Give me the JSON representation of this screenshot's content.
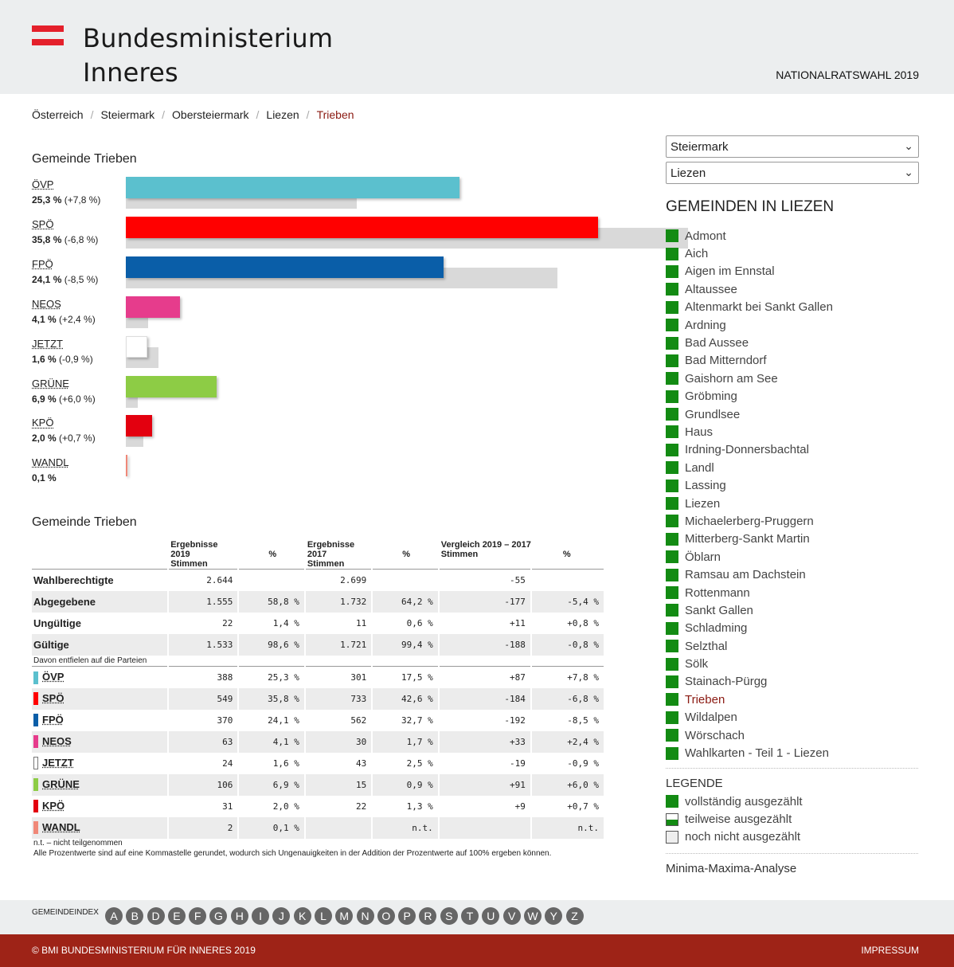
{
  "header": {
    "logo_line1": "Bundesministerium",
    "logo_line2": "Inneres",
    "election": "NATIONALRATSWAHL 2019"
  },
  "breadcrumb": [
    "Österreich",
    "Steiermark",
    "Obersteiermark",
    "Liezen",
    "Trieben"
  ],
  "chart_title": "Gemeinde Trieben",
  "chart_data": {
    "type": "bar",
    "categories": [
      "ÖVP",
      "SPÖ",
      "FPÖ",
      "NEOS",
      "JETZT",
      "GRÜNE",
      "KPÖ",
      "WANDL"
    ],
    "series": [
      {
        "values": [
          25.3,
          35.8,
          24.1,
          4.1,
          1.6,
          6.9,
          2.0,
          0.1
        ]
      },
      {
        "values": [
          17.5,
          42.6,
          32.7,
          1.7,
          2.5,
          0.9,
          1.3,
          null
        ]
      }
    ],
    "labels": [
      "25,3 %",
      "35,8 %",
      "24,1 %",
      "4,1 %",
      "1,6 %",
      "6,9 %",
      "2,0 %",
      "0,1 %"
    ],
    "changes": [
      "(+7,8 %)",
      "(-6,8 %)",
      "(-8,5 %)",
      "(+2,4 %)",
      "(-0,9 %)",
      "(+6,0 %)",
      "(+0,7 %)",
      ""
    ],
    "colors": [
      "#5bc0ce",
      "#ff0000",
      "#0a5ea8",
      "#e63c8c",
      "#ffffff",
      "#8dcc45",
      "#e3000f",
      "#f08878"
    ]
  },
  "table": {
    "title": "Gemeinde Trieben",
    "group_headers": [
      "Ergebnisse 2019",
      "Ergebnisse 2017",
      "Vergleich 2019 – 2017"
    ],
    "sub_votes": "Stimmen",
    "sub_pct": "%",
    "summary_rows": [
      {
        "label": "Wahlberechtigte",
        "v19": "2.644",
        "p19": "",
        "v17": "2.699",
        "p17": "",
        "vd": "-55",
        "pd": ""
      },
      {
        "label": "Abgegebene",
        "v19": "1.555",
        "p19": "58,8 %",
        "v17": "1.732",
        "p17": "64,2 %",
        "vd": "-177",
        "pd": "-5,4 %"
      },
      {
        "label": "Ungültige",
        "v19": "22",
        "p19": "1,4 %",
        "v17": "11",
        "p17": "0,6 %",
        "vd": "+11",
        "pd": "+0,8 %"
      },
      {
        "label": "Gültige",
        "v19": "1.533",
        "p19": "98,6 %",
        "v17": "1.721",
        "p17": "99,4 %",
        "vd": "-188",
        "pd": "-0,8 %"
      }
    ],
    "subnote": "Davon entfielen auf die Parteien",
    "party_rows": [
      {
        "label": "ÖVP",
        "color": "#5bc0ce",
        "v19": "388",
        "p19": "25,3 %",
        "v17": "301",
        "p17": "17,5 %",
        "vd": "+87",
        "pd": "+7,8 %"
      },
      {
        "label": "SPÖ",
        "color": "#ff0000",
        "v19": "549",
        "p19": "35,8 %",
        "v17": "733",
        "p17": "42,6 %",
        "vd": "-184",
        "pd": "-6,8 %"
      },
      {
        "label": "FPÖ",
        "color": "#0a5ea8",
        "v19": "370",
        "p19": "24,1 %",
        "v17": "562",
        "p17": "32,7 %",
        "vd": "-192",
        "pd": "-8,5 %"
      },
      {
        "label": "NEOS",
        "color": "#e63c8c",
        "v19": "63",
        "p19": "4,1 %",
        "v17": "30",
        "p17": "1,7 %",
        "vd": "+33",
        "pd": "+2,4 %"
      },
      {
        "label": "JETZT",
        "color": "#ffffff",
        "v19": "24",
        "p19": "1,6 %",
        "v17": "43",
        "p17": "2,5 %",
        "vd": "-19",
        "pd": "-0,9 %"
      },
      {
        "label": "GRÜNE",
        "color": "#8dcc45",
        "v19": "106",
        "p19": "6,9 %",
        "v17": "15",
        "p17": "0,9 %",
        "vd": "+91",
        "pd": "+6,0 %"
      },
      {
        "label": "KPÖ",
        "color": "#e3000f",
        "v19": "31",
        "p19": "2,0 %",
        "v17": "22",
        "p17": "1,3 %",
        "vd": "+9",
        "pd": "+0,7 %"
      },
      {
        "label": "WANDL",
        "color": "#f08878",
        "v19": "2",
        "p19": "0,1 %",
        "v17": "",
        "p17": "n.t.",
        "vd": "",
        "pd": "n.t."
      }
    ],
    "footnote1": "n.t. – nicht teilgenommen",
    "footnote2": "Alle Prozentwerte sind auf eine Kommastelle gerundet, wodurch sich Ungenauigkeiten in der Addition der Prozentwerte auf 100% ergeben können."
  },
  "sidebar": {
    "select_state": "Steiermark",
    "select_district": "Liezen",
    "title": "GEMEINDEN IN LIEZEN",
    "municipalities": [
      "Admont",
      "Aich",
      "Aigen im Ennstal",
      "Altaussee",
      "Altenmarkt bei Sankt Gallen",
      "Ardning",
      "Bad Aussee",
      "Bad Mitterndorf",
      "Gaishorn am See",
      "Gröbming",
      "Grundlsee",
      "Haus",
      "Irdning-Donnersbachtal",
      "Landl",
      "Lassing",
      "Liezen",
      "Michaelerberg-Pruggern",
      "Mitterberg-Sankt Martin",
      "Öblarn",
      "Ramsau am Dachstein",
      "Rottenmann",
      "Sankt Gallen",
      "Schladming",
      "Selzthal",
      "Sölk",
      "Stainach-Pürgg",
      "Trieben",
      "Wildalpen",
      "Wörschach",
      "Wahlkarten - Teil 1 - Liezen"
    ],
    "active": "Trieben",
    "legend_title": "LEGENDE",
    "legend": [
      "vollständig ausgezählt",
      "teilweise ausgezählt",
      "noch nicht ausgezählt"
    ],
    "minmax": "Minima-Maxima-Analyse"
  },
  "index": {
    "label": "GEMEINDEINDEX",
    "letters": [
      "A",
      "B",
      "D",
      "E",
      "F",
      "G",
      "H",
      "I",
      "J",
      "K",
      "L",
      "M",
      "N",
      "O",
      "P",
      "R",
      "S",
      "T",
      "U",
      "V",
      "W",
      "Y",
      "Z"
    ]
  },
  "footer": {
    "copyright": "© BMI BUNDESMINISTERIUM FÜR INNERES 2019",
    "impressum": "IMPRESSUM"
  }
}
